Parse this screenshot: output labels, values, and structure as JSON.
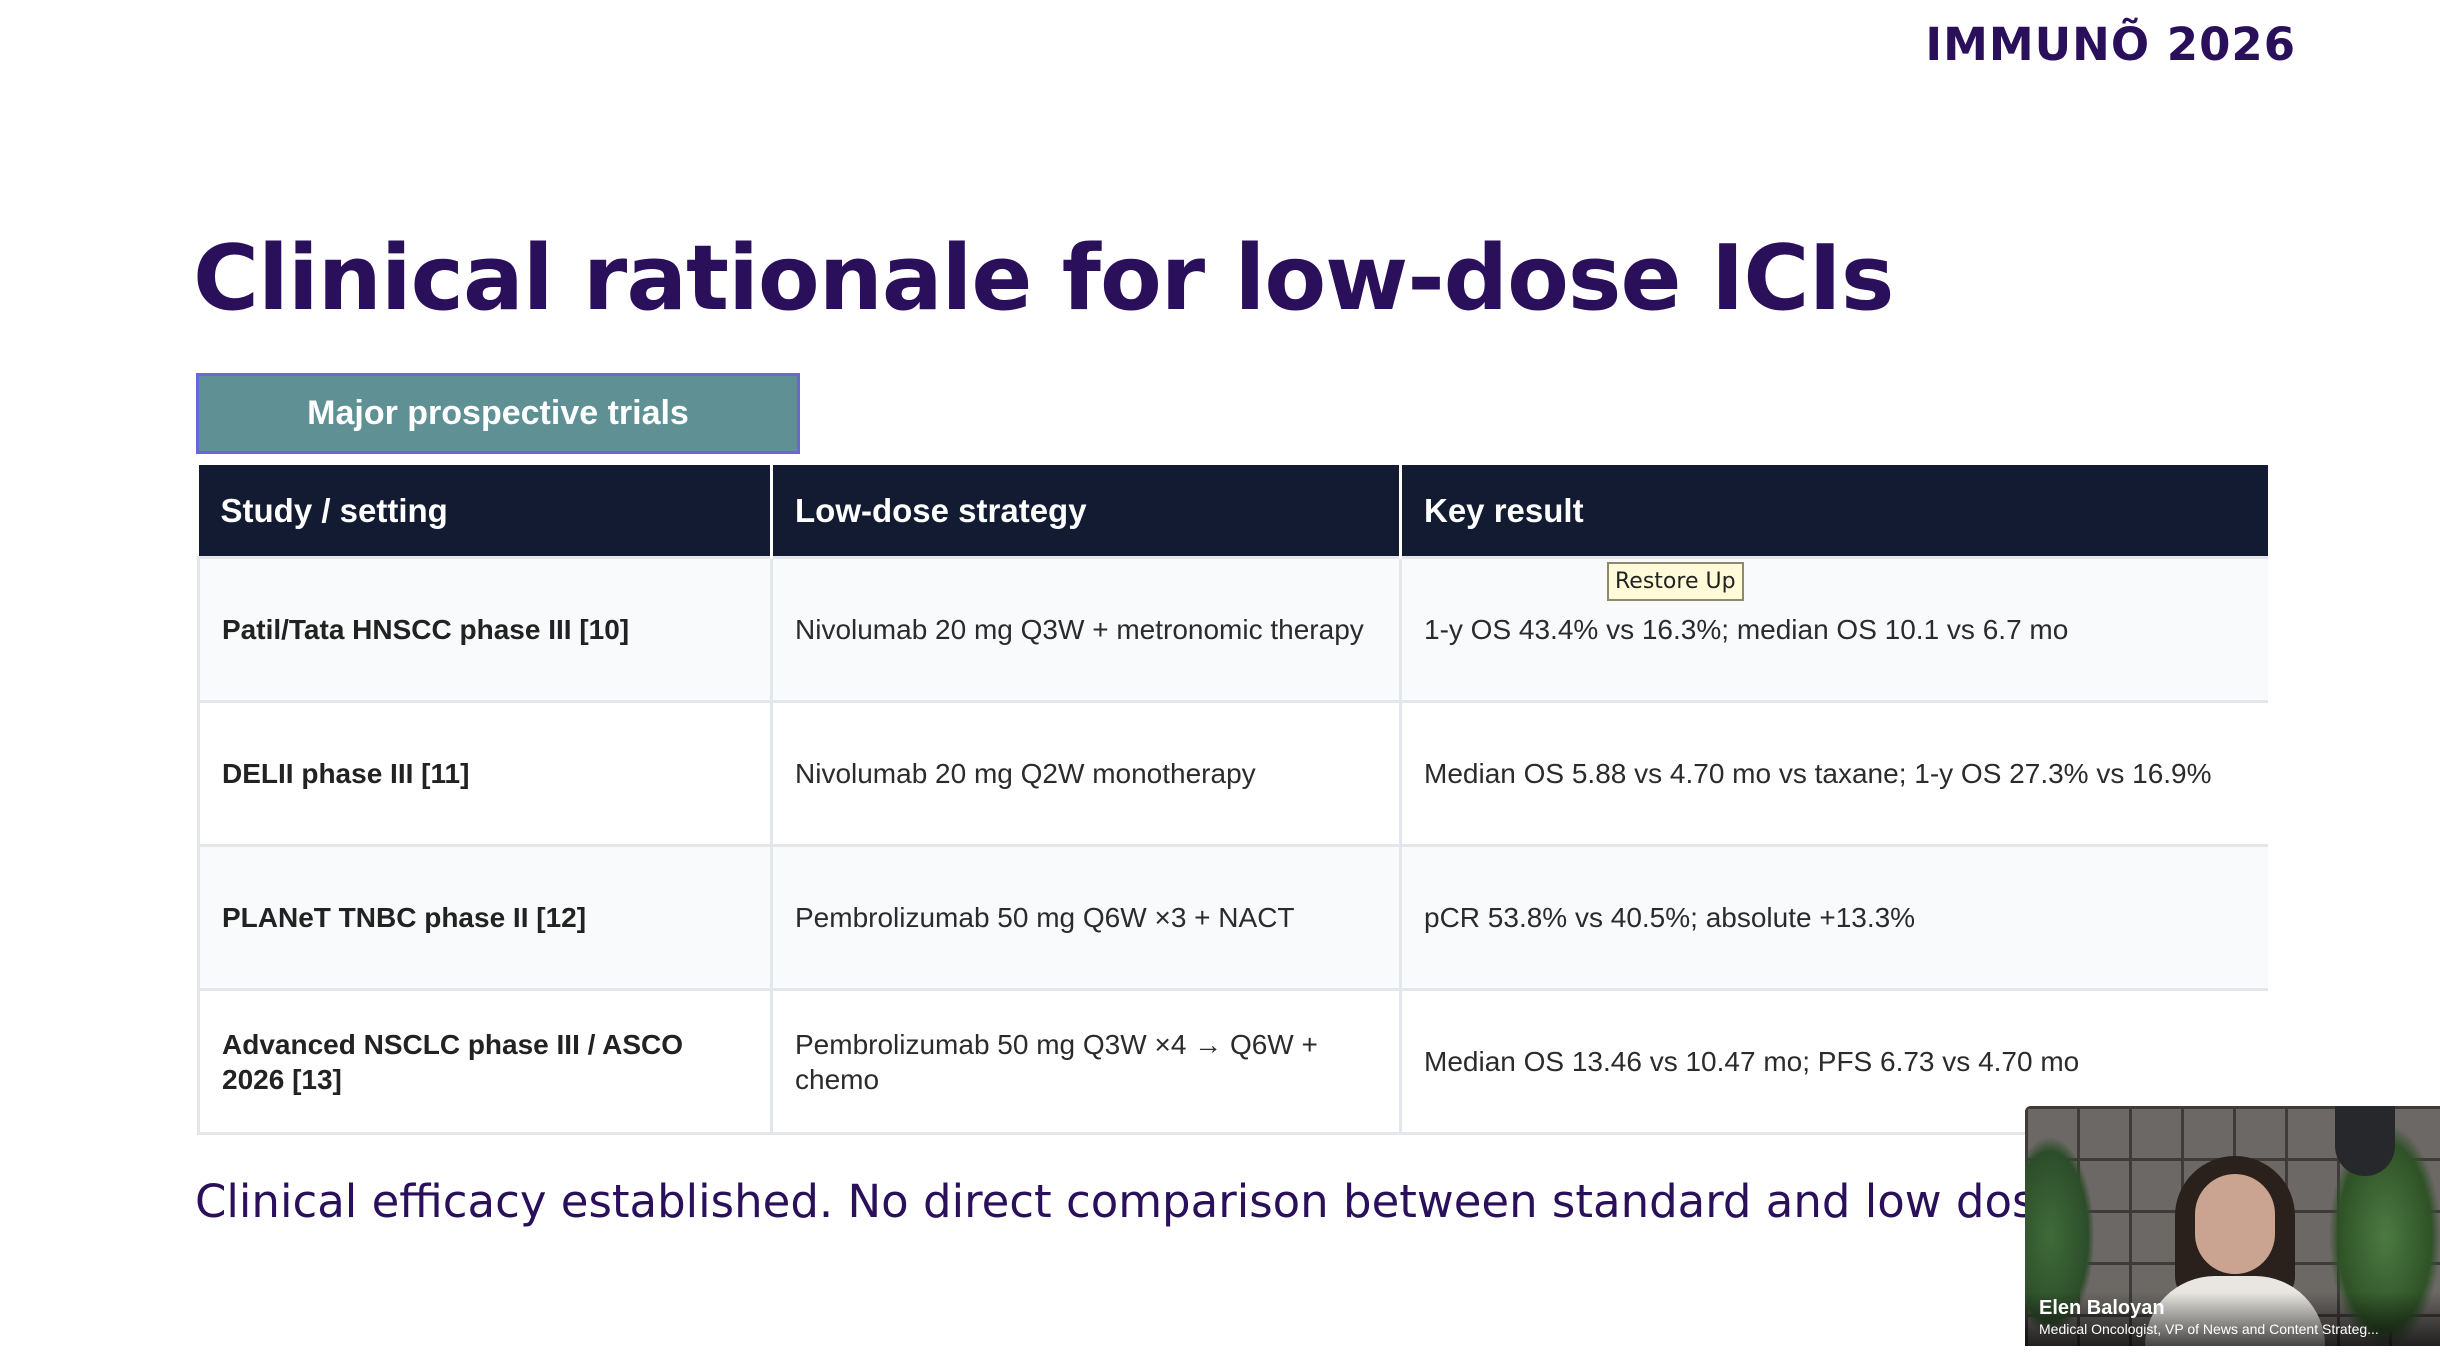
{
  "brand": "IMMUNÕ 2026",
  "slide": {
    "title": "Clinical rationale for low-dose ICIs",
    "section_label": "Major prospective trials",
    "footer_note": "Clinical efficacy established. No direct comparison between standard and low dose re"
  },
  "table": {
    "headers": [
      "Study / setting",
      "Low-dose strategy",
      "Key result"
    ],
    "rows": [
      {
        "study": "Patil/Tata HNSCC phase III [10]",
        "strategy": "Nivolumab 20 mg Q3W + metronomic therapy",
        "result": "1-y OS 43.4% vs 16.3%; median OS 10.1 vs 6.7 mo"
      },
      {
        "study": "DELII phase III [11]",
        "strategy": "Nivolumab 20 mg Q2W monotherapy",
        "result": "Median OS 5.88 vs 4.70 mo vs taxane; 1-y OS 27.3% vs 16.9%"
      },
      {
        "study": "PLANeT TNBC phase II [12]",
        "strategy": "Pembrolizumab 50 mg Q6W ×3 + NACT",
        "result": "pCR 53.8% vs 40.5%; absolute +13.3%"
      },
      {
        "study": "Advanced NSCLC phase III / ASCO 2026 [13]",
        "strategy": "Pembrolizumab 50 mg Q3W ×4 → Q6W + chemo",
        "result": "Median OS 13.46 vs 10.47 mo; PFS 6.73 vs 4.70 mo"
      }
    ]
  },
  "tooltip": "Restore Up",
  "video": {
    "speaker_name": "Elen Baloyan",
    "speaker_role": "Medical Oncologist, VP of News and Content Strateg..."
  },
  "colors": {
    "title": "#2a0f5b",
    "section_label_bg": "#5f9094",
    "table_header_bg": "#131b33"
  }
}
